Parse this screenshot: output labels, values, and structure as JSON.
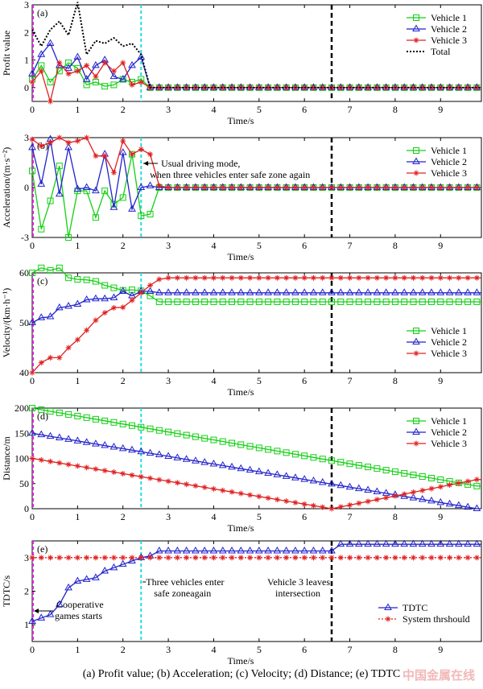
{
  "caption": "(a) Profit value; (b) Acceleration; (c) Velocity; (d) Distance; (e) TDTC",
  "watermark": "中国金属在线",
  "colors": {
    "v1": "#11d011",
    "v2": "#2222cc",
    "v3": "#e02020",
    "total": "#000000",
    "cyan": "#22dddd",
    "magenta": "#dd22dd"
  },
  "chart_data": [
    {
      "panel": "(a)",
      "type": "line",
      "xlabel": "Time/s",
      "ylabel": "Profit value",
      "xlim": [
        0,
        9.9
      ],
      "ylim": [
        -0.5,
        3
      ],
      "xticks": [
        0,
        1,
        2,
        3,
        4,
        5,
        6,
        7,
        8,
        9
      ],
      "yticks": [
        0,
        1,
        2,
        3
      ],
      "legend_position": "top-right",
      "x": [
        0,
        0.2,
        0.4,
        0.6,
        0.8,
        1.0,
        1.2,
        1.4,
        1.6,
        1.8,
        2.0,
        2.2,
        2.4,
        2.6
      ],
      "series": [
        {
          "name": "Vehicle 1",
          "color_key": "v1",
          "marker": "square",
          "values": [
            0.3,
            0.8,
            0.2,
            0.6,
            0.9,
            0.7,
            0.1,
            0.2,
            0.05,
            0.1,
            0.3,
            0.2,
            0.3,
            0
          ]
        },
        {
          "name": "Vehicle 2",
          "color_key": "v2",
          "marker": "triangle",
          "values": [
            0.5,
            1.2,
            1.6,
            0.8,
            0.7,
            1.1,
            0.3,
            0.8,
            1.0,
            0.4,
            0.3,
            0.8,
            1.1,
            0
          ]
        },
        {
          "name": "Vehicle 3",
          "color_key": "v3",
          "marker": "star",
          "values": [
            0.2,
            0.6,
            -0.5,
            0.9,
            0.5,
            0.6,
            0.8,
            0.4,
            0.9,
            0.6,
            0.9,
            0.1,
            0.2,
            0
          ]
        },
        {
          "name": "Total",
          "color_key": "total",
          "marker": "none",
          "dotted": true,
          "values": [
            2.1,
            1.5,
            2.1,
            2.4,
            1.9,
            3.1,
            1.2,
            1.7,
            1.6,
            1.8,
            1.5,
            1.6,
            1.2,
            0
          ]
        }
      ],
      "flat_after": 2.6,
      "flat_value": 0
    },
    {
      "panel": "(b)",
      "type": "line",
      "xlabel": "Time/s",
      "ylabel": "Acceleration/(m·s⁻²)",
      "xlim": [
        0,
        9.9
      ],
      "ylim": [
        -3,
        3
      ],
      "xticks": [
        0,
        1,
        2,
        3,
        4,
        5,
        6,
        7,
        8,
        9
      ],
      "yticks": [
        -3,
        0,
        3
      ],
      "legend_position": "top-right",
      "annotation": "Usual driving mode, when three vehicles enter safe zone again",
      "x": [
        0,
        0.2,
        0.4,
        0.6,
        0.8,
        1.0,
        1.2,
        1.4,
        1.6,
        1.8,
        2.0,
        2.2,
        2.4,
        2.6,
        2.8,
        3.0
      ],
      "series": [
        {
          "name": "Vehicle 1",
          "color_key": "v1",
          "marker": "square",
          "values": [
            1.0,
            -2.5,
            -0.8,
            1.3,
            -3.0,
            -0.2,
            -0.2,
            -1.8,
            -0.2,
            -1.0,
            -0.6,
            2.0,
            -1.7,
            -1.6,
            0,
            0
          ]
        },
        {
          "name": "Vehicle 2",
          "color_key": "v2",
          "marker": "triangle",
          "values": [
            2.4,
            0.2,
            2.9,
            -0.4,
            2.4,
            -0.1,
            0,
            -0.2,
            2.0,
            -1.2,
            2.1,
            -1.3,
            0,
            0.1,
            0,
            0
          ]
        },
        {
          "name": "Vehicle 3",
          "color_key": "v3",
          "marker": "star",
          "values": [
            2.9,
            2.5,
            2.7,
            3.0,
            2.7,
            2.8,
            3.0,
            1.9,
            1.9,
            0.9,
            2.8,
            2.0,
            2.3,
            2.0,
            0.1,
            0
          ]
        }
      ],
      "flat_after": 3.0,
      "flat_value": 0
    },
    {
      "panel": "(c)",
      "type": "line",
      "xlabel": "Time/s",
      "ylabel": "Velocity/(km·h⁻¹)",
      "xlim": [
        0,
        9.9
      ],
      "ylim": [
        40,
        60
      ],
      "xticks": [
        0,
        1,
        2,
        3,
        4,
        5,
        6,
        7,
        8,
        9
      ],
      "yticks": [
        40,
        50,
        60
      ],
      "legend_position": "right",
      "x": [
        0,
        0.2,
        0.4,
        0.6,
        0.8,
        1.0,
        1.2,
        1.4,
        1.6,
        1.8,
        2.0,
        2.2,
        2.4,
        2.6,
        2.8
      ],
      "series": [
        {
          "name": "Vehicle 1",
          "color_key": "v1",
          "marker": "square",
          "values": [
            60,
            61,
            60.5,
            61,
            59,
            58.7,
            58.6,
            58.3,
            57.5,
            57,
            56.5,
            56.6,
            56.4,
            55.4,
            54.2
          ]
        },
        {
          "name": "Vehicle 2",
          "color_key": "v2",
          "marker": "triangle",
          "values": [
            50,
            51,
            51.2,
            53,
            53.3,
            53.7,
            54.6,
            54.8,
            54.8,
            55,
            56.3,
            55.4,
            56.3,
            56.3,
            56
          ]
        },
        {
          "name": "Vehicle 3",
          "color_key": "v3",
          "marker": "star",
          "values": [
            40,
            42,
            43,
            43,
            45,
            46.6,
            48.5,
            50.5,
            52,
            53,
            53.1,
            54.5,
            56,
            57.5,
            58.7
          ]
        }
      ],
      "flat_after": 2.8,
      "flat_values": [
        54.2,
        56,
        59
      ]
    },
    {
      "panel": "(d)",
      "type": "line",
      "xlabel": "Time/s",
      "ylabel": "Distance/m",
      "xlim": [
        0,
        9.9
      ],
      "ylim": [
        0,
        200
      ],
      "xticks": [
        0,
        1,
        2,
        3,
        4,
        5,
        6,
        7,
        8,
        9
      ],
      "yticks": [
        0,
        50,
        100,
        150,
        200
      ],
      "legend_position": "top-right",
      "series": [
        {
          "name": "Vehicle 1",
          "color_key": "v1",
          "marker": "square",
          "start": 200,
          "end": 45
        },
        {
          "name": "Vehicle 2",
          "color_key": "v2",
          "marker": "triangle",
          "start": 150,
          "end": 0
        },
        {
          "name": "Vehicle 3",
          "color_key": "v3",
          "marker": "star",
          "start": 100,
          "min_at": 6.6,
          "end": 58
        }
      ]
    },
    {
      "panel": "(e)",
      "type": "line",
      "xlabel": "Time/s",
      "ylabel": "TDTC/s",
      "xlim": [
        0,
        9.9
      ],
      "ylim": [
        0.5,
        3.5
      ],
      "xticks": [
        0,
        1,
        2,
        3,
        4,
        5,
        6,
        7,
        8,
        9
      ],
      "yticks": [
        1,
        2,
        3
      ],
      "legend_position": "bottom-right",
      "annotations": [
        {
          "text": "Cooperative games starts",
          "x": 0
        },
        {
          "text": "Three vehicles enter safe zoneagain",
          "x": 2.4
        },
        {
          "text": "Vehicle 3 leaves intersection",
          "x": 6.6
        }
      ],
      "series": [
        {
          "name": "TDTC",
          "color_key": "v2",
          "marker": "triangle",
          "x": [
            0,
            0.2,
            0.4,
            0.6,
            0.8,
            1.0,
            1.2,
            1.4,
            1.6,
            1.8,
            2.0,
            2.2,
            2.4,
            2.6,
            2.8,
            3.0,
            6.6,
            6.8,
            9.9
          ],
          "values": [
            1.1,
            1.2,
            1.3,
            1.6,
            2.1,
            2.3,
            2.35,
            2.4,
            2.6,
            2.7,
            2.8,
            2.9,
            3.0,
            3.05,
            3.2,
            3.2,
            3.2,
            3.4,
            3.4
          ]
        },
        {
          "name": "System thrshould",
          "color_key": "v3",
          "marker": "star",
          "constant": 3.0
        }
      ]
    }
  ],
  "events": {
    "cyan_x": 2.4,
    "black_x": 6.6,
    "magenta_x": 0
  }
}
